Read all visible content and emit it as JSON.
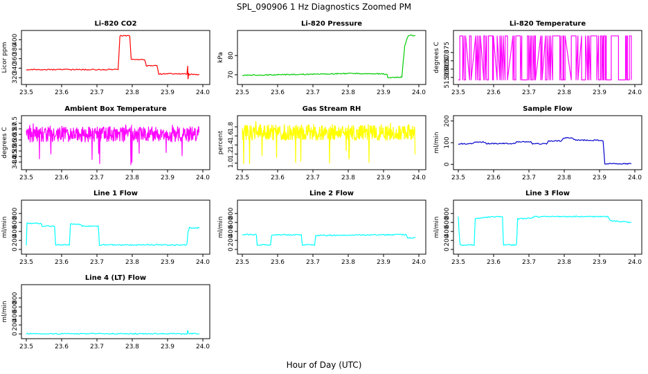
{
  "figure": {
    "title": "SPL_090906  1 Hz Diagnostics Zoomed PM",
    "xlabel": "Hour of Day (UTC)"
  },
  "chart_data": [
    {
      "type": "line",
      "title": "Li-820 CO2",
      "ylabel": "Licor ppm",
      "color": "#ff0000",
      "xlim": [
        23.5,
        24.0
      ],
      "ylim": [
        310,
        415
      ],
      "xticks": [
        23.5,
        23.6,
        23.7,
        23.8,
        23.9,
        24.0
      ],
      "xtick_labels": [
        "23.5",
        "23.6",
        "23.7",
        "23.8",
        "23.9",
        "24.0"
      ],
      "yticks": [
        320,
        340,
        360,
        380,
        400
      ],
      "ytick_labels": [
        "320",
        "340",
        "360",
        "380",
        "400"
      ],
      "x": [
        23.5,
        23.76,
        23.765,
        23.793,
        23.797,
        23.835,
        23.84,
        23.87,
        23.875,
        23.955,
        23.957,
        23.958,
        23.96,
        23.962,
        23.99
      ],
      "y": [
        337,
        337,
        408,
        408,
        358,
        358,
        345,
        345,
        328,
        328,
        345,
        318,
        330,
        327,
        327
      ]
    },
    {
      "type": "line",
      "title": "Li-820 Pressure",
      "ylabel": "kPa",
      "color": "#00cc00",
      "xlim": [
        23.5,
        24.0
      ],
      "ylim": [
        66,
        92
      ],
      "xticks": [
        23.5,
        23.6,
        23.7,
        23.8,
        23.9,
        24.0
      ],
      "xtick_labels": [
        "23.5",
        "23.6",
        "23.7",
        "23.8",
        "23.9",
        "24.0"
      ],
      "yticks": [
        70,
        80
      ],
      "ytick_labels": [
        "70",
        "80"
      ],
      "x": [
        23.5,
        23.6,
        23.7,
        23.8,
        23.9,
        23.91,
        23.912,
        23.952,
        23.955,
        23.96,
        23.965,
        23.97,
        23.99
      ],
      "y": [
        69.8,
        70.0,
        70.3,
        70.6,
        70.5,
        70.2,
        68.6,
        68.8,
        75,
        85,
        88,
        90.5,
        90.5
      ]
    },
    {
      "type": "line",
      "title": "Li-820 Temperature",
      "ylabel": "degrees C",
      "color": "#ff00ff",
      "xlim": [
        23.5,
        24.0
      ],
      "ylim": [
        51.357,
        51.387
      ],
      "xticks": [
        23.5,
        23.6,
        23.7,
        23.8,
        23.9,
        24.0
      ],
      "xtick_labels": [
        "23.5",
        "23.6",
        "23.7",
        "23.8",
        "23.9",
        "24.0"
      ],
      "yticks": [
        51.36,
        51.365,
        51.37,
        51.375
      ],
      "ytick_labels": [
        "51.360",
        "51.365",
        "51.370",
        "51.375"
      ],
      "x": [
        23.5,
        23.99
      ],
      "y_values": [
        51.3585,
        51.385
      ]
    },
    {
      "type": "line",
      "title": "Ambient Box Temperature",
      "ylabel": "degrees C",
      "color": "#ff00ff",
      "xlim": [
        23.5,
        24.0
      ],
      "ylim": [
        33.5,
        38.0
      ],
      "xticks": [
        23.5,
        23.6,
        23.7,
        23.8,
        23.9,
        24.0
      ],
      "xtick_labels": [
        "23.5",
        "23.6",
        "23.7",
        "23.8",
        "23.9",
        "24.0"
      ],
      "yticks": [
        34.0,
        34.5,
        35.0,
        35.5,
        36.0,
        36.5,
        37.0,
        37.5
      ],
      "ytick_labels": [
        "34.0",
        "34.5",
        "35.0",
        "35.5",
        "36.0",
        "36.5",
        "37.0",
        "37.5"
      ],
      "x": [
        23.5,
        23.99
      ],
      "y_range": [
        35.8,
        37.2
      ]
    },
    {
      "type": "line",
      "title": "Gas Stream RH",
      "ylabel": "percent",
      "color": "#ffff00",
      "xlim": [
        23.5,
        24.0
      ],
      "ylim": [
        0.9,
        2.0
      ],
      "xticks": [
        23.5,
        23.6,
        23.7,
        23.8,
        23.9,
        24.0
      ],
      "xtick_labels": [
        "23.5",
        "23.6",
        "23.7",
        "23.8",
        "23.9",
        "24.0"
      ],
      "yticks": [
        1.0,
        1.2,
        1.4,
        1.6,
        1.8
      ],
      "ytick_labels": [
        "1.0",
        "1.2",
        "1.4",
        "1.6",
        "1.8"
      ],
      "x": [
        23.5,
        23.99
      ],
      "y_range": [
        1.5,
        1.85
      ]
    },
    {
      "type": "line",
      "title": "Sample Flow",
      "ylabel": "ml/min",
      "color": "#0000cc",
      "xlim": [
        23.5,
        24.0
      ],
      "ylim": [
        -15,
        215
      ],
      "xticks": [
        23.5,
        23.6,
        23.7,
        23.8,
        23.9,
        24.0
      ],
      "xtick_labels": [
        "23.5",
        "23.6",
        "23.7",
        "23.8",
        "23.9",
        "24.0"
      ],
      "yticks": [
        0,
        100,
        200
      ],
      "ytick_labels": [
        "0",
        "100",
        "200"
      ],
      "x": [
        23.5,
        23.54,
        23.545,
        23.575,
        23.58,
        23.66,
        23.665,
        23.705,
        23.71,
        23.75,
        23.755,
        23.79,
        23.8,
        23.82,
        23.83,
        23.91,
        23.915,
        23.99
      ],
      "y": [
        95,
        95,
        103,
        103,
        96,
        96,
        104,
        104,
        95,
        95,
        108,
        108,
        122,
        122,
        113,
        110,
        3,
        3
      ]
    },
    {
      "type": "line",
      "title": "Line 1 Flow",
      "ylabel": "ml/min",
      "color": "#00ffff",
      "xlim": [
        23.5,
        24.0
      ],
      "ylim": [
        -60,
        1050
      ],
      "xticks": [
        23.5,
        23.6,
        23.7,
        23.8,
        23.9,
        24.0
      ],
      "xtick_labels": [
        "23.5",
        "23.6",
        "23.7",
        "23.8",
        "23.9",
        "24.0"
      ],
      "yticks": [
        0,
        200,
        400,
        600,
        800
      ],
      "ytick_labels": [
        "0",
        "200",
        "400",
        "600",
        "800"
      ],
      "x": [
        23.5,
        23.502,
        23.542,
        23.545,
        23.58,
        23.583,
        23.622,
        23.625,
        23.655,
        23.658,
        23.704,
        23.707,
        23.955,
        23.958,
        23.962,
        23.99
      ],
      "y": [
        100,
        580,
        580,
        520,
        520,
        100,
        100,
        560,
        560,
        520,
        520,
        100,
        100,
        400,
        480,
        480
      ]
    },
    {
      "type": "line",
      "title": "Line 2 Flow",
      "ylabel": "ml/min",
      "color": "#00ffff",
      "xlim": [
        23.5,
        24.0
      ],
      "ylim": [
        -60,
        1050
      ],
      "xticks": [
        23.5,
        23.6,
        23.7,
        23.8,
        23.9,
        24.0
      ],
      "xtick_labels": [
        "23.5",
        "23.6",
        "23.7",
        "23.8",
        "23.9",
        "24.0"
      ],
      "yticks": [
        0,
        200,
        400,
        600,
        800
      ],
      "ytick_labels": [
        "0",
        "200",
        "400",
        "600",
        "800"
      ],
      "x": [
        23.5,
        23.54,
        23.542,
        23.58,
        23.583,
        23.667,
        23.67,
        23.705,
        23.708,
        23.965,
        23.968,
        23.99
      ],
      "y": [
        330,
        330,
        100,
        100,
        320,
        330,
        100,
        100,
        310,
        330,
        260,
        260
      ]
    },
    {
      "type": "line",
      "title": "Line 3 Flow",
      "ylabel": "ml/min",
      "color": "#00ffff",
      "xlim": [
        23.5,
        24.0
      ],
      "ylim": [
        -60,
        1050
      ],
      "xticks": [
        23.5,
        23.6,
        23.7,
        23.8,
        23.9,
        24.0
      ],
      "xtick_labels": [
        "23.5",
        "23.6",
        "23.7",
        "23.8",
        "23.9",
        "24.0"
      ],
      "yticks": [
        0,
        200,
        400,
        600,
        800
      ],
      "ytick_labels": [
        "0",
        "200",
        "400",
        "600",
        "800"
      ],
      "x": [
        23.5,
        23.502,
        23.505,
        23.545,
        23.548,
        23.585,
        23.625,
        23.628,
        23.665,
        23.668,
        23.71,
        23.715,
        23.925,
        23.93,
        23.99
      ],
      "y": [
        740,
        400,
        100,
        100,
        690,
        720,
        730,
        100,
        100,
        680,
        700,
        730,
        730,
        640,
        600
      ]
    },
    {
      "type": "line",
      "title": "Line 4 (LT) Flow",
      "ylabel": "ml/min",
      "color": "#00ffff",
      "xlim": [
        23.5,
        24.0
      ],
      "ylim": [
        -60,
        1050
      ],
      "xticks": [
        23.5,
        23.6,
        23.7,
        23.8,
        23.9,
        24.0
      ],
      "xtick_labels": [
        "23.5",
        "23.6",
        "23.7",
        "23.8",
        "23.9",
        "24.0"
      ],
      "yticks": [
        0,
        200,
        400,
        600,
        800
      ],
      "ytick_labels": [
        "0",
        "200",
        "400",
        "600",
        "800"
      ],
      "x": [
        23.5,
        23.955,
        23.957,
        23.959,
        23.99
      ],
      "y": [
        5,
        5,
        80,
        5,
        5
      ]
    }
  ]
}
